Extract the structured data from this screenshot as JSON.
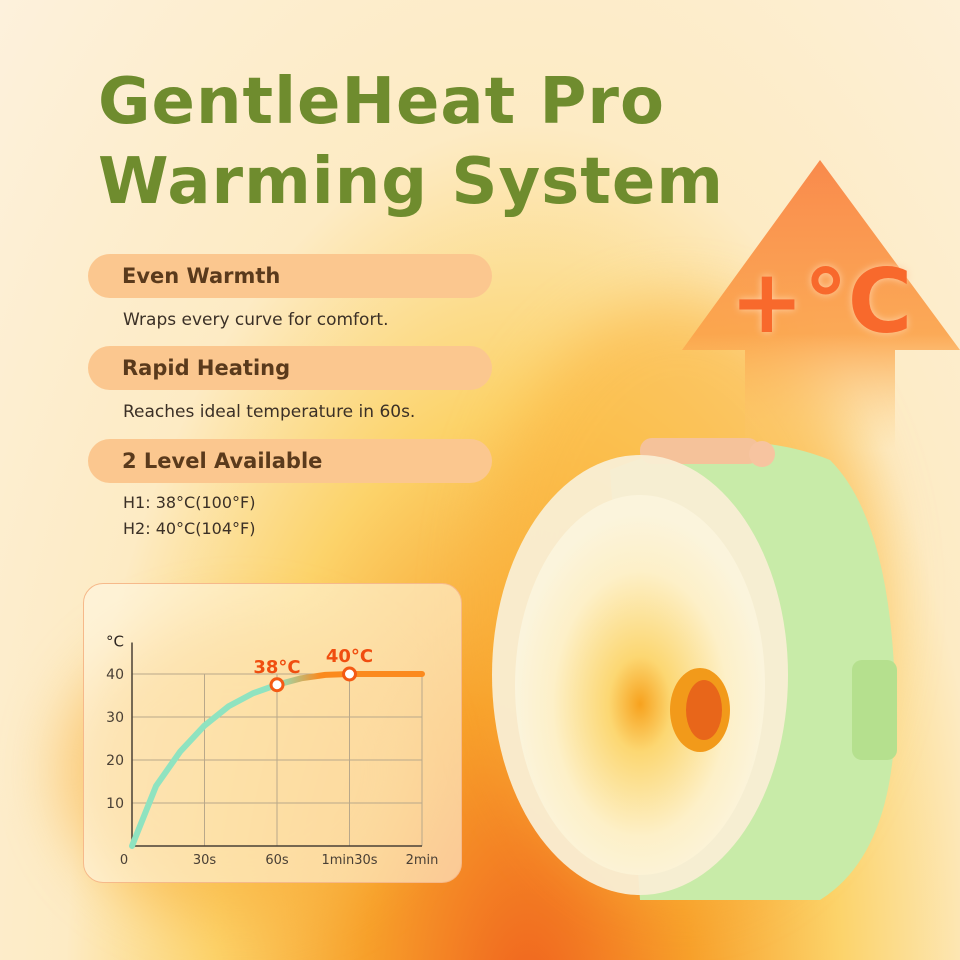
{
  "title_line1": "GentleHeat Pro",
  "title_line2": "Warming System",
  "features": [
    {
      "label": "Even Warmth",
      "description": "Wraps every curve for comfort."
    },
    {
      "label": "Rapid Heating",
      "description": "Reaches ideal temperature in 60s."
    },
    {
      "label": "2 Level Available",
      "levels": [
        "H1:  38°C(100°F)",
        "H2:  40°C(104°F)"
      ]
    }
  ],
  "arrow_text": "+°C",
  "colors": {
    "title": "#6f8c2e",
    "pill": "#fbc78f",
    "accent": "#f8692c",
    "curve_start": "#8fe3c0",
    "curve_end": "#fb8a1e"
  },
  "chart_data": {
    "type": "line",
    "ylabel": "°C",
    "xticks": [
      "0",
      "30s",
      "60s",
      "1min30s",
      "2min"
    ],
    "xtick_values": [
      0,
      30,
      60,
      90,
      120
    ],
    "yticks": [
      "10",
      "20",
      "30",
      "40"
    ],
    "ytick_values": [
      10,
      20,
      30,
      40
    ],
    "xlim": [
      0,
      120
    ],
    "ylim": [
      0,
      45
    ],
    "grid": true,
    "series": [
      {
        "x": [
          0,
          10,
          20,
          30,
          40,
          50,
          60,
          70,
          80,
          90,
          100,
          110,
          120
        ],
        "y": [
          0,
          14,
          22,
          28,
          32.5,
          35.5,
          37.5,
          39,
          39.8,
          40,
          40,
          40,
          40
        ]
      }
    ],
    "annotations": [
      {
        "x": 60,
        "y": 37.5,
        "text": "38°C"
      },
      {
        "x": 90,
        "y": 40,
        "text": "40°C"
      }
    ]
  }
}
